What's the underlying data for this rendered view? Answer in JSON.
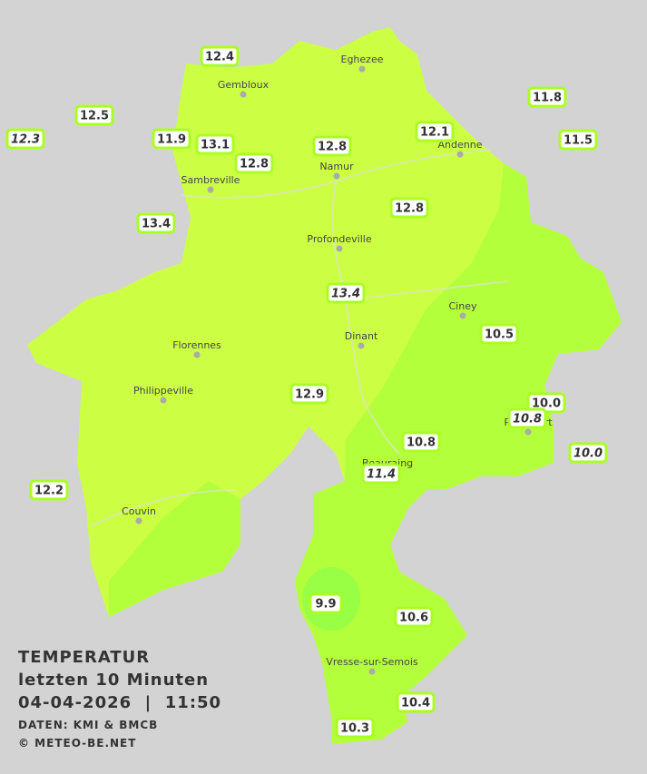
{
  "title": "TEMPERATUR",
  "subtitle": "letzten 10 Minuten",
  "datetime": "04-04-2026  |  11:50",
  "source": "DATEN: KMI & BMCB",
  "copyright": "© METEO-BE.NET",
  "cities": [
    "Eghezee",
    "Gembloux",
    "Andenne",
    "Namur",
    "Sambreville",
    "Profondeville",
    "Ciney",
    "Dinant",
    "Florennes",
    "Philippeville",
    "Rochefort",
    "Beauraing",
    "Couvin",
    "Vresse-sur-Semois"
  ],
  "stations": [
    {
      "label": "12.4",
      "italic": false
    },
    {
      "label": "12.5",
      "italic": false
    },
    {
      "label": "12.3",
      "italic": true
    },
    {
      "label": "11.9",
      "italic": false
    },
    {
      "label": "13.1",
      "italic": false
    },
    {
      "label": "12.8",
      "italic": false
    },
    {
      "label": "12.8",
      "italic": false
    },
    {
      "label": "12.1",
      "italic": false
    },
    {
      "label": "11.8",
      "italic": false
    },
    {
      "label": "11.5",
      "italic": false
    },
    {
      "label": "13.4",
      "italic": false
    },
    {
      "label": "12.8",
      "italic": false
    },
    {
      "label": "13.4",
      "italic": true
    },
    {
      "label": "10.5",
      "italic": false
    },
    {
      "label": "12.9",
      "italic": false
    },
    {
      "label": "10.0",
      "italic": false
    },
    {
      "label": "10.8",
      "italic": true
    },
    {
      "label": "10.0",
      "italic": true
    },
    {
      "label": "10.8",
      "italic": false
    },
    {
      "label": "11.4",
      "italic": true
    },
    {
      "label": "12.2",
      "italic": false
    },
    {
      "label": "9.9",
      "italic": false
    },
    {
      "label": "10.6",
      "italic": false
    },
    {
      "label": "10.4",
      "italic": false
    },
    {
      "label": "10.3",
      "italic": false
    }
  ]
}
